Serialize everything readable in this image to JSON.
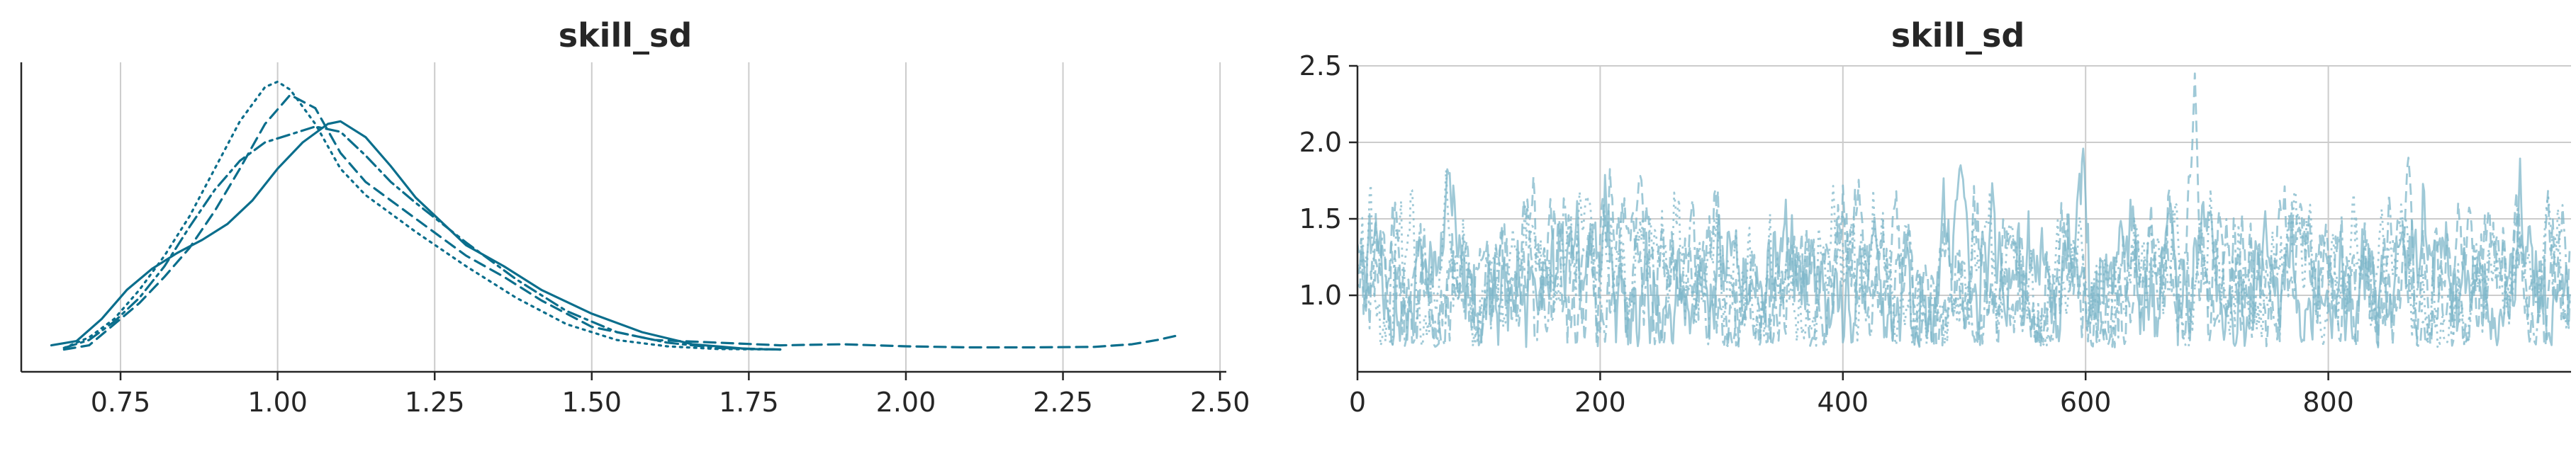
{
  "chart_data": [
    {
      "type": "line",
      "title": "skill_sd",
      "xlabel": "",
      "ylabel": "",
      "xlim": [
        0.6,
        2.5
      ],
      "ylim": [
        0,
        5.2
      ],
      "grid": "x",
      "legend": "none",
      "xticks": [
        "0.75",
        "1.00",
        "1.25",
        "1.50",
        "1.75",
        "2.00",
        "2.25",
        "2.50"
      ],
      "xtick_values": [
        0.75,
        1.0,
        1.25,
        1.5,
        1.75,
        2.0,
        2.25,
        2.5
      ],
      "color": "#0b6e8c",
      "series": [
        {
          "linestyle": "solid",
          "x": [
            0.64,
            0.68,
            0.72,
            0.76,
            0.8,
            0.84,
            0.88,
            0.92,
            0.96,
            1.0,
            1.04,
            1.08,
            1.1,
            1.14,
            1.18,
            1.22,
            1.26,
            1.3,
            1.36,
            1.42,
            1.5,
            1.58,
            1.66,
            1.75,
            1.8
          ],
          "y": [
            0.1,
            0.18,
            0.6,
            1.15,
            1.55,
            1.85,
            2.1,
            2.4,
            2.85,
            3.45,
            3.95,
            4.3,
            4.35,
            4.05,
            3.5,
            2.9,
            2.45,
            2.0,
            1.6,
            1.15,
            0.7,
            0.35,
            0.12,
            0.03,
            0.02
          ]
        },
        {
          "linestyle": "dashed",
          "x": [
            0.66,
            0.7,
            0.74,
            0.78,
            0.82,
            0.86,
            0.9,
            0.94,
            0.98,
            1.02,
            1.06,
            1.1,
            1.14,
            1.18,
            1.22,
            1.3,
            1.36,
            1.42,
            1.5,
            1.6,
            1.7,
            1.8,
            1.9,
            2.0,
            2.1,
            2.2,
            2.3,
            2.36,
            2.4,
            2.43
          ],
          "y": [
            0.02,
            0.1,
            0.5,
            0.9,
            1.4,
            1.95,
            2.65,
            3.45,
            4.3,
            4.85,
            4.6,
            3.75,
            3.2,
            2.85,
            2.5,
            1.8,
            1.4,
            0.95,
            0.45,
            0.2,
            0.15,
            0.1,
            0.12,
            0.08,
            0.06,
            0.06,
            0.07,
            0.12,
            0.2,
            0.28
          ]
        },
        {
          "linestyle": "dotted",
          "x": [
            0.66,
            0.7,
            0.74,
            0.78,
            0.82,
            0.86,
            0.9,
            0.94,
            0.98,
            1.0,
            1.02,
            1.06,
            1.1,
            1.14,
            1.18,
            1.22,
            1.3,
            1.38,
            1.46,
            1.54,
            1.62,
            1.7,
            1.8
          ],
          "y": [
            0.05,
            0.25,
            0.6,
            1.15,
            1.8,
            2.55,
            3.45,
            4.35,
            5.0,
            5.1,
            4.95,
            4.3,
            3.45,
            2.95,
            2.6,
            2.25,
            1.6,
            1.0,
            0.5,
            0.2,
            0.08,
            0.03,
            0.02
          ]
        },
        {
          "linestyle": "dashdot",
          "x": [
            0.66,
            0.7,
            0.74,
            0.78,
            0.82,
            0.86,
            0.9,
            0.94,
            0.98,
            1.02,
            1.06,
            1.1,
            1.14,
            1.18,
            1.22,
            1.3,
            1.38,
            1.46,
            1.54,
            1.62,
            1.7,
            1.8
          ],
          "y": [
            0.05,
            0.2,
            0.55,
            1.0,
            1.6,
            2.35,
            3.05,
            3.6,
            3.95,
            4.1,
            4.25,
            4.15,
            3.7,
            3.2,
            2.8,
            2.05,
            1.35,
            0.75,
            0.35,
            0.15,
            0.05,
            0.02
          ]
        }
      ]
    },
    {
      "type": "line",
      "title": "skill_sd",
      "xlabel": "",
      "ylabel": "",
      "xlim": [
        0,
        1000
      ],
      "ylim": [
        0.5,
        2.5
      ],
      "grid": "both",
      "legend": "none",
      "xticks": [
        "0",
        "200",
        "400",
        "600",
        "800"
      ],
      "xtick_values": [
        0,
        200,
        400,
        600,
        800
      ],
      "yticks": [
        "1.0",
        "1.5",
        "2.0",
        "2.5"
      ],
      "ytick_values": [
        1.0,
        1.5,
        2.0,
        2.5
      ],
      "color": "#7fb7c9",
      "n_draws": 1000,
      "series": [
        {
          "linestyle": "solid",
          "notable_peaks": [
            [
              497,
              1.85
            ],
            [
              670,
              1.6
            ],
            [
              703,
              1.55
            ],
            [
              748,
              1.55
            ]
          ]
        },
        {
          "linestyle": "dashed",
          "notable_peaks": [
            [
              20,
              1.35
            ],
            [
              690,
              2.45
            ],
            [
              866,
              1.9
            ],
            [
              937,
              1.35
            ]
          ]
        },
        {
          "linestyle": "dotted",
          "notable_peaks": [
            [
              73,
              1.82
            ],
            [
              189,
              1.65
            ],
            [
              537,
              1.45
            ],
            [
              981,
              1.65
            ]
          ]
        },
        {
          "linestyle": "dashdot",
          "notable_peaks": [
            [
              230,
              1.4
            ],
            [
              452,
              1.45
            ],
            [
              780,
              1.35
            ],
            [
              860,
              1.5
            ]
          ]
        }
      ]
    }
  ]
}
